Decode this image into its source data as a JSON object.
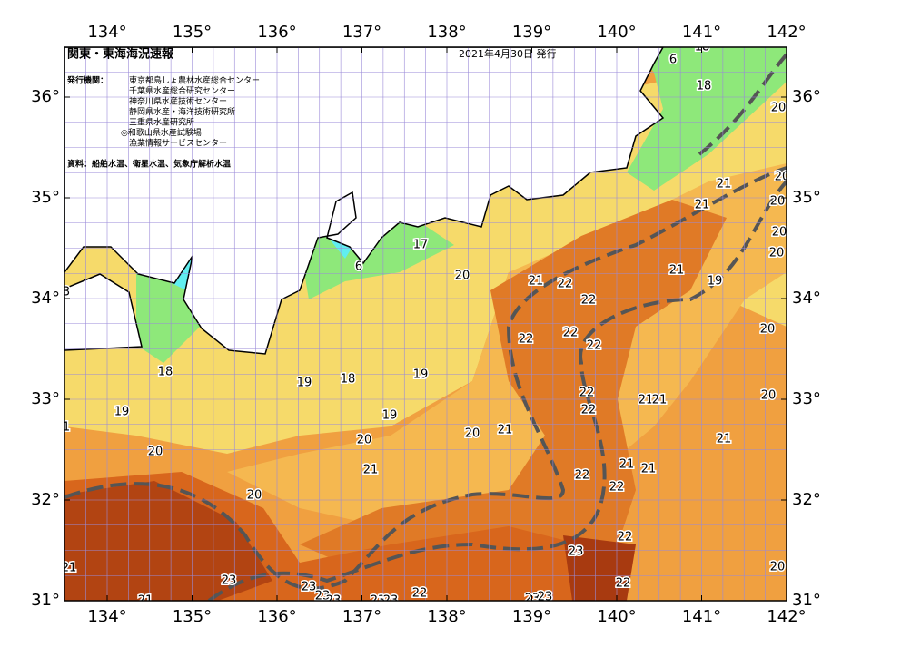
{
  "header": {
    "title": "関東・東海海況速報",
    "date": "2021年4月30日 発行",
    "issuer_label": "発行機関：",
    "issuers": [
      "東京都島しょ農林水産総合センター",
      "千葉県水産総合研究センター",
      "神奈川県水産技術センター",
      "静岡県水産・海洋技術研究所",
      "三重県水産研究所",
      "◎和歌山県水産試験場",
      "漁業情報サービスセンター"
    ],
    "source": "資料：船舶水温、衛星水温、気象庁解析水温"
  },
  "map": {
    "lon_ticks": [
      {
        "value": 134,
        "label": "134°"
      },
      {
        "value": 135,
        "label": "135°"
      },
      {
        "value": 136,
        "label": "136°"
      },
      {
        "value": 137,
        "label": "137°"
      },
      {
        "value": 138,
        "label": "138°"
      },
      {
        "value": 139,
        "label": "139°"
      },
      {
        "value": 140,
        "label": "140°"
      },
      {
        "value": 141,
        "label": "141°"
      },
      {
        "value": 142,
        "label": "142°"
      }
    ],
    "lat_ticks": [
      {
        "value": 31,
        "label": "31°"
      },
      {
        "value": 32,
        "label": "32°"
      },
      {
        "value": 33,
        "label": "33°"
      },
      {
        "value": 34,
        "label": "34°"
      },
      {
        "value": 35,
        "label": "35°"
      },
      {
        "value": 36,
        "label": "36°"
      }
    ],
    "contour_labels": [
      18,
      6,
      18,
      20,
      21,
      21,
      20,
      20,
      20,
      20,
      17,
      6,
      20,
      21,
      22,
      22,
      21,
      19,
      3,
      22,
      22,
      22,
      20,
      18,
      19,
      18,
      19,
      22,
      21,
      21,
      20,
      19,
      1,
      19,
      22,
      21,
      20,
      20,
      21,
      20,
      21,
      21,
      21,
      22,
      22,
      20,
      23,
      22,
      20,
      21,
      23,
      23,
      22,
      23,
      23,
      23,
      23,
      22,
      23,
      23,
      21
    ]
  }
}
